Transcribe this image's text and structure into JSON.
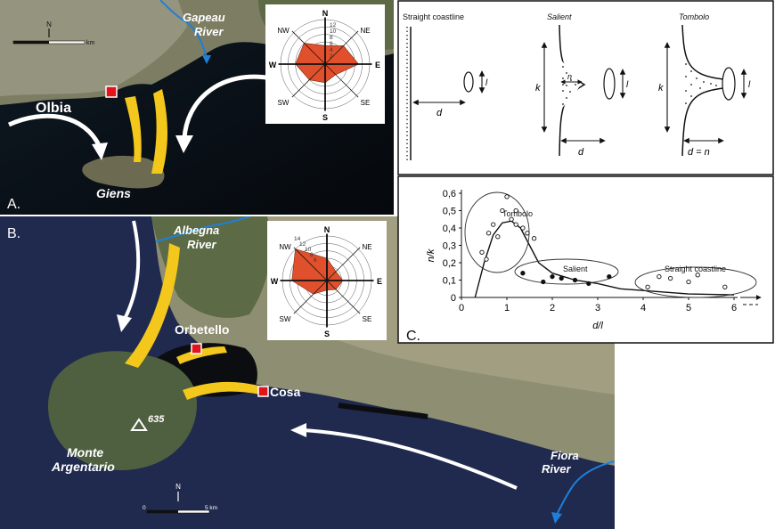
{
  "panel_a": {
    "letter": "A.",
    "labels": {
      "gapeau": "Gapeau",
      "gapeau_river": "River",
      "olbia": "Olbia",
      "giens": "Giens"
    },
    "scale_unit": "km",
    "north": "N",
    "rose": {
      "directions": [
        "N",
        "NE",
        "E",
        "SE",
        "S",
        "SW",
        "W",
        "NW"
      ],
      "rings": [
        "12",
        "10",
        "8",
        "6",
        "4",
        "2"
      ],
      "values": [
        5,
        7,
        9,
        4,
        5,
        6,
        8,
        8
      ],
      "fill": "#e1502c"
    }
  },
  "panel_b": {
    "letter": "B.",
    "labels": {
      "albegna": "Albegna",
      "albegna_river": "River",
      "orbetello": "Orbetello",
      "cosa": "Cosa",
      "monte": "Monte",
      "argentario": "Argentario",
      "peak": "635",
      "fiora": "Fiora",
      "fiora_river": "River"
    },
    "scale_start": "0",
    "scale_end": "5 km",
    "north": "N",
    "rose": {
      "directions": [
        "N",
        "NE",
        "E",
        "SE",
        "S",
        "SW",
        "W",
        "NW"
      ],
      "rings": [
        "14",
        "12",
        "10",
        "8",
        "6"
      ],
      "values": [
        7,
        4,
        5,
        4,
        3,
        6,
        11,
        14
      ],
      "fill": "#e1502c"
    }
  },
  "panel_schematic": {
    "straight": "Straight coastline",
    "salient": "Salient",
    "tombolo": "Tombolo",
    "d": "d",
    "l": "l",
    "k": "k",
    "n": "n",
    "dn": "d = n"
  },
  "chart_data": {
    "type": "scatter",
    "letter": "C.",
    "xlabel": "d/l",
    "ylabel": "n/k",
    "xlim": [
      0,
      6.5
    ],
    "ylim": [
      0,
      0.6
    ],
    "xticks": [
      "0",
      "1",
      "2",
      "3",
      "4",
      "5",
      "6"
    ],
    "yticks": [
      "0",
      "0,1",
      "0,2",
      "0,3",
      "0,4",
      "0,5",
      "0,6"
    ],
    "groups": [
      {
        "label": "Tombolo",
        "filled": false,
        "points": [
          [
            0.45,
            0.26
          ],
          [
            0.55,
            0.22
          ],
          [
            0.6,
            0.37
          ],
          [
            0.7,
            0.42
          ],
          [
            0.8,
            0.35
          ],
          [
            0.9,
            0.5
          ],
          [
            1.0,
            0.58
          ],
          [
            1.1,
            0.45
          ],
          [
            1.2,
            0.42
          ],
          [
            1.35,
            0.4
          ],
          [
            1.45,
            0.37
          ],
          [
            1.6,
            0.34
          ],
          [
            1.2,
            0.5
          ]
        ]
      },
      {
        "label": "Salient",
        "filled": true,
        "points": [
          [
            1.35,
            0.14
          ],
          [
            1.8,
            0.09
          ],
          [
            2.0,
            0.12
          ],
          [
            2.2,
            0.11
          ],
          [
            2.5,
            0.1
          ],
          [
            2.8,
            0.08
          ],
          [
            3.25,
            0.12
          ]
        ]
      },
      {
        "label": "Straight coastline",
        "filled": false,
        "points": [
          [
            4.1,
            0.06
          ],
          [
            4.35,
            0.12
          ],
          [
            4.6,
            0.11
          ],
          [
            5.0,
            0.09
          ],
          [
            5.2,
            0.13
          ],
          [
            5.8,
            0.06
          ]
        ]
      }
    ],
    "curve": [
      [
        0.3,
        0.0
      ],
      [
        0.5,
        0.2
      ],
      [
        0.7,
        0.36
      ],
      [
        0.9,
        0.43
      ],
      [
        1.1,
        0.44
      ],
      [
        1.3,
        0.4
      ],
      [
        1.5,
        0.3
      ],
      [
        1.7,
        0.2
      ],
      [
        2.0,
        0.14
      ],
      [
        2.5,
        0.1
      ],
      [
        3.0,
        0.08
      ],
      [
        3.5,
        0.05
      ],
      [
        4.0,
        0.04
      ],
      [
        5.0,
        0.02
      ],
      [
        6.0,
        0.015
      ]
    ]
  }
}
